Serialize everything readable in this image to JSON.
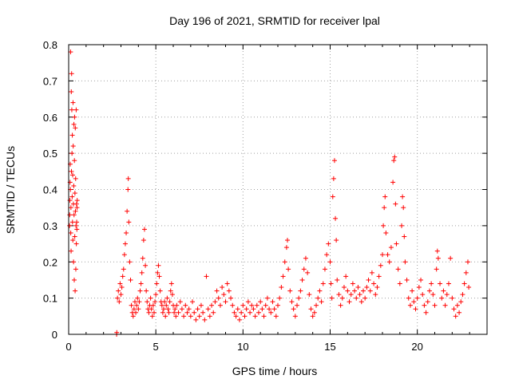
{
  "chart_data": {
    "type": "scatter",
    "title": "Day 196 of 2021, SRMTID for receiver lpal",
    "xlabel": "GPS time / hours",
    "ylabel": "SRMTID / TECUs",
    "xlim": [
      0,
      24
    ],
    "ylim": [
      0,
      0.8
    ],
    "grid": true,
    "marker": "+",
    "color": "#ff0000",
    "x_ticks": [
      0,
      5,
      10,
      15,
      20
    ],
    "y_ticks": [
      0,
      0.1,
      0.2,
      0.3,
      0.4,
      0.5,
      0.6,
      0.7,
      0.8
    ],
    "x_tick_labels": [
      "0",
      "5",
      "10",
      "15",
      "20"
    ],
    "y_tick_labels": [
      "0",
      "0.1",
      "0.2",
      "0.3",
      "0.4",
      "0.5",
      "0.6",
      "0.7",
      "0.8"
    ],
    "series": [
      {
        "name": "SRMTID",
        "points": [
          [
            0.05,
            0.3
          ],
          [
            0.06,
            0.33
          ],
          [
            0.07,
            0.37
          ],
          [
            0.08,
            0.42
          ],
          [
            0.09,
            0.47
          ],
          [
            0.1,
            0.4
          ],
          [
            0.11,
            0.78
          ],
          [
            0.12,
            0.28
          ],
          [
            0.13,
            0.35
          ],
          [
            0.14,
            0.23
          ],
          [
            0.15,
            0.67
          ],
          [
            0.16,
            0.45
          ],
          [
            0.17,
            0.72
          ],
          [
            0.18,
            0.62
          ],
          [
            0.19,
            0.5
          ],
          [
            0.2,
            0.38
          ],
          [
            0.21,
            0.55
          ],
          [
            0.22,
            0.31
          ],
          [
            0.23,
            0.44
          ],
          [
            0.24,
            0.26
          ],
          [
            0.25,
            0.64
          ],
          [
            0.26,
            0.52
          ],
          [
            0.27,
            0.36
          ],
          [
            0.28,
            0.2
          ],
          [
            0.29,
            0.41
          ],
          [
            0.3,
            0.58
          ],
          [
            0.31,
            0.33
          ],
          [
            0.32,
            0.15
          ],
          [
            0.33,
            0.48
          ],
          [
            0.34,
            0.6
          ],
          [
            0.35,
            0.27
          ],
          [
            0.36,
            0.39
          ],
          [
            0.37,
            0.12
          ],
          [
            0.38,
            0.57
          ],
          [
            0.39,
            0.34
          ],
          [
            0.4,
            0.43
          ],
          [
            0.41,
            0.18
          ],
          [
            0.42,
            0.3
          ],
          [
            0.43,
            0.62
          ],
          [
            0.44,
            0.25
          ],
          [
            0.45,
            0.36
          ],
          [
            0.46,
            0.31
          ],
          [
            0.47,
            0.29
          ],
          [
            0.48,
            0.35
          ],
          [
            0.49,
            0.37
          ],
          [
            2.75,
            0.0
          ],
          [
            2.76,
            0.005
          ],
          [
            2.8,
            0.1
          ],
          [
            2.85,
            0.12
          ],
          [
            2.9,
            0.09
          ],
          [
            2.95,
            0.14
          ],
          [
            3.0,
            0.11
          ],
          [
            3.05,
            0.13
          ],
          [
            3.1,
            0.16
          ],
          [
            3.15,
            0.18
          ],
          [
            3.2,
            0.22
          ],
          [
            3.25,
            0.25
          ],
          [
            3.3,
            0.28
          ],
          [
            3.35,
            0.34
          ],
          [
            3.4,
            0.4
          ],
          [
            3.42,
            0.43
          ],
          [
            3.45,
            0.31
          ],
          [
            3.5,
            0.2
          ],
          [
            3.55,
            0.15
          ],
          [
            3.6,
            0.08
          ],
          [
            3.65,
            0.06
          ],
          [
            3.7,
            0.05
          ],
          [
            3.75,
            0.07
          ],
          [
            3.8,
            0.09
          ],
          [
            3.85,
            0.06
          ],
          [
            3.9,
            0.08
          ],
          [
            3.95,
            0.1
          ],
          [
            4.0,
            0.07
          ],
          [
            4.05,
            0.09
          ],
          [
            4.1,
            0.12
          ],
          [
            4.15,
            0.14
          ],
          [
            4.2,
            0.17
          ],
          [
            4.25,
            0.21
          ],
          [
            4.3,
            0.26
          ],
          [
            4.35,
            0.29
          ],
          [
            4.4,
            0.19
          ],
          [
            4.45,
            0.12
          ],
          [
            4.5,
            0.09
          ],
          [
            4.55,
            0.07
          ],
          [
            4.6,
            0.06
          ],
          [
            4.65,
            0.08
          ],
          [
            4.7,
            0.1
          ],
          [
            4.75,
            0.07
          ],
          [
            4.8,
            0.05
          ],
          [
            4.85,
            0.08
          ],
          [
            4.9,
            0.06
          ],
          [
            4.95,
            0.09
          ],
          [
            5.0,
            0.11
          ],
          [
            5.05,
            0.14
          ],
          [
            5.1,
            0.17
          ],
          [
            5.15,
            0.19
          ],
          [
            5.2,
            0.16
          ],
          [
            5.25,
            0.12
          ],
          [
            5.3,
            0.09
          ],
          [
            5.35,
            0.08
          ],
          [
            5.4,
            0.06
          ],
          [
            5.45,
            0.07
          ],
          [
            5.5,
            0.09
          ],
          [
            5.55,
            0.05
          ],
          [
            5.6,
            0.08
          ],
          [
            5.65,
            0.1
          ],
          [
            5.7,
            0.07
          ],
          [
            5.75,
            0.06
          ],
          [
            5.8,
            0.09
          ],
          [
            5.85,
            0.12
          ],
          [
            5.9,
            0.14
          ],
          [
            5.95,
            0.11
          ],
          [
            6.0,
            0.08
          ],
          [
            6.05,
            0.06
          ],
          [
            6.1,
            0.07
          ],
          [
            6.15,
            0.05
          ],
          [
            6.2,
            0.08
          ],
          [
            6.3,
            0.06
          ],
          [
            6.4,
            0.09
          ],
          [
            6.5,
            0.07
          ],
          [
            6.6,
            0.05
          ],
          [
            6.7,
            0.08
          ],
          [
            6.8,
            0.06
          ],
          [
            6.9,
            0.07
          ],
          [
            7.0,
            0.05
          ],
          [
            7.1,
            0.09
          ],
          [
            7.2,
            0.06
          ],
          [
            7.3,
            0.04
          ],
          [
            7.4,
            0.07
          ],
          [
            7.5,
            0.05
          ],
          [
            7.6,
            0.08
          ],
          [
            7.7,
            0.06
          ],
          [
            7.8,
            0.04
          ],
          [
            7.9,
            0.16
          ],
          [
            8.0,
            0.07
          ],
          [
            8.1,
            0.05
          ],
          [
            8.2,
            0.08
          ],
          [
            8.3,
            0.06
          ],
          [
            8.4,
            0.09
          ],
          [
            8.5,
            0.12
          ],
          [
            8.6,
            0.1
          ],
          [
            8.7,
            0.08
          ],
          [
            8.8,
            0.13
          ],
          [
            8.9,
            0.11
          ],
          [
            9.0,
            0.09
          ],
          [
            9.1,
            0.14
          ],
          [
            9.2,
            0.12
          ],
          [
            9.3,
            0.1
          ],
          [
            9.4,
            0.08
          ],
          [
            9.5,
            0.06
          ],
          [
            9.6,
            0.05
          ],
          [
            9.7,
            0.07
          ],
          [
            9.8,
            0.04
          ],
          [
            9.9,
            0.06
          ],
          [
            10.0,
            0.08
          ],
          [
            10.1,
            0.05
          ],
          [
            10.2,
            0.07
          ],
          [
            10.3,
            0.09
          ],
          [
            10.4,
            0.06
          ],
          [
            10.5,
            0.08
          ],
          [
            10.6,
            0.07
          ],
          [
            10.7,
            0.05
          ],
          [
            10.8,
            0.08
          ],
          [
            10.9,
            0.06
          ],
          [
            11.0,
            0.09
          ],
          [
            11.1,
            0.07
          ],
          [
            11.2,
            0.05
          ],
          [
            11.3,
            0.08
          ],
          [
            11.4,
            0.1
          ],
          [
            11.5,
            0.07
          ],
          [
            11.6,
            0.06
          ],
          [
            11.7,
            0.09
          ],
          [
            11.8,
            0.07
          ],
          [
            11.9,
            0.05
          ],
          [
            12.0,
            0.08
          ],
          [
            12.1,
            0.1
          ],
          [
            12.2,
            0.13
          ],
          [
            12.3,
            0.16
          ],
          [
            12.4,
            0.2
          ],
          [
            12.5,
            0.24
          ],
          [
            12.55,
            0.26
          ],
          [
            12.6,
            0.18
          ],
          [
            12.7,
            0.12
          ],
          [
            12.8,
            0.09
          ],
          [
            12.9,
            0.07
          ],
          [
            13.0,
            0.05
          ],
          [
            13.1,
            0.08
          ],
          [
            13.2,
            0.1
          ],
          [
            13.3,
            0.12
          ],
          [
            13.4,
            0.15
          ],
          [
            13.5,
            0.18
          ],
          [
            13.6,
            0.21
          ],
          [
            13.7,
            0.17
          ],
          [
            13.8,
            0.11
          ],
          [
            13.9,
            0.07
          ],
          [
            14.0,
            0.05
          ],
          [
            14.1,
            0.06
          ],
          [
            14.2,
            0.08
          ],
          [
            14.3,
            0.1
          ],
          [
            14.4,
            0.12
          ],
          [
            14.5,
            0.09
          ],
          [
            14.6,
            0.14
          ],
          [
            14.7,
            0.18
          ],
          [
            14.8,
            0.22
          ],
          [
            14.9,
            0.25
          ],
          [
            15.0,
            0.2
          ],
          [
            15.05,
            0.14
          ],
          [
            15.1,
            0.1
          ],
          [
            15.15,
            0.38
          ],
          [
            15.2,
            0.43
          ],
          [
            15.25,
            0.48
          ],
          [
            15.3,
            0.32
          ],
          [
            15.35,
            0.26
          ],
          [
            15.4,
            0.15
          ],
          [
            15.5,
            0.11
          ],
          [
            15.6,
            0.08
          ],
          [
            15.7,
            0.1
          ],
          [
            15.8,
            0.13
          ],
          [
            15.9,
            0.16
          ],
          [
            16.0,
            0.12
          ],
          [
            16.1,
            0.09
          ],
          [
            16.2,
            0.11
          ],
          [
            16.3,
            0.14
          ],
          [
            16.4,
            0.12
          ],
          [
            16.5,
            0.1
          ],
          [
            16.6,
            0.13
          ],
          [
            16.7,
            0.11
          ],
          [
            16.8,
            0.09
          ],
          [
            16.9,
            0.12
          ],
          [
            17.0,
            0.1
          ],
          [
            17.1,
            0.13
          ],
          [
            17.2,
            0.15
          ],
          [
            17.3,
            0.12
          ],
          [
            17.4,
            0.17
          ],
          [
            17.5,
            0.14
          ],
          [
            17.6,
            0.11
          ],
          [
            17.7,
            0.13
          ],
          [
            17.8,
            0.16
          ],
          [
            17.9,
            0.19
          ],
          [
            18.0,
            0.22
          ],
          [
            18.05,
            0.3
          ],
          [
            18.1,
            0.35
          ],
          [
            18.15,
            0.38
          ],
          [
            18.2,
            0.28
          ],
          [
            18.3,
            0.22
          ],
          [
            18.4,
            0.2
          ],
          [
            18.5,
            0.24
          ],
          [
            18.6,
            0.42
          ],
          [
            18.65,
            0.48
          ],
          [
            18.7,
            0.49
          ],
          [
            18.75,
            0.36
          ],
          [
            18.8,
            0.25
          ],
          [
            18.9,
            0.18
          ],
          [
            19.0,
            0.14
          ],
          [
            19.1,
            0.3
          ],
          [
            19.15,
            0.38
          ],
          [
            19.2,
            0.35
          ],
          [
            19.25,
            0.27
          ],
          [
            19.3,
            0.2
          ],
          [
            19.4,
            0.15
          ],
          [
            19.5,
            0.1
          ],
          [
            19.6,
            0.08
          ],
          [
            19.7,
            0.12
          ],
          [
            19.8,
            0.09
          ],
          [
            19.9,
            0.07
          ],
          [
            20.0,
            0.1
          ],
          [
            20.1,
            0.13
          ],
          [
            20.2,
            0.15
          ],
          [
            20.3,
            0.11
          ],
          [
            20.4,
            0.08
          ],
          [
            20.5,
            0.06
          ],
          [
            20.6,
            0.09
          ],
          [
            20.7,
            0.12
          ],
          [
            20.8,
            0.14
          ],
          [
            20.9,
            0.11
          ],
          [
            21.0,
            0.08
          ],
          [
            21.1,
            0.18
          ],
          [
            21.15,
            0.23
          ],
          [
            21.2,
            0.21
          ],
          [
            21.3,
            0.14
          ],
          [
            21.4,
            0.1
          ],
          [
            21.5,
            0.12
          ],
          [
            21.6,
            0.08
          ],
          [
            21.7,
            0.11
          ],
          [
            21.8,
            0.14
          ],
          [
            21.9,
            0.21
          ],
          [
            22.0,
            0.1
          ],
          [
            22.1,
            0.07
          ],
          [
            22.2,
            0.05
          ],
          [
            22.3,
            0.08
          ],
          [
            22.4,
            0.06
          ],
          [
            22.5,
            0.09
          ],
          [
            22.6,
            0.11
          ],
          [
            22.7,
            0.14
          ],
          [
            22.8,
            0.17
          ],
          [
            22.9,
            0.2
          ],
          [
            22.95,
            0.13
          ]
        ]
      }
    ]
  }
}
